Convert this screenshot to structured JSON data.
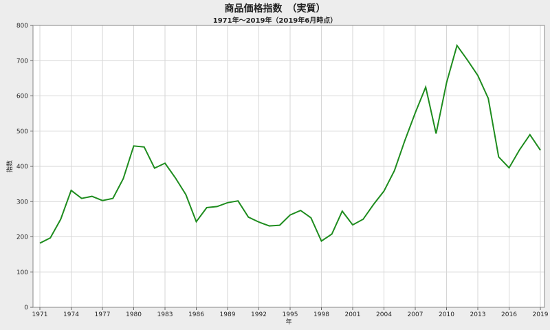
{
  "chart_data": {
    "type": "line",
    "title": "商品価格指数　（実質）",
    "subtitle": "1971年～2019年（2019年6月時点）",
    "xlabel": "年",
    "ylabel": "指数",
    "xlim": [
      1971,
      2019
    ],
    "ylim": [
      0,
      800
    ],
    "x_ticks": [
      "1971",
      "1974",
      "1977",
      "1980",
      "1983",
      "1986",
      "1989",
      "1992",
      "1995",
      "1998",
      "2001",
      "2004",
      "2007",
      "2010",
      "2013",
      "2016",
      "2019"
    ],
    "y_ticks": [
      "0",
      "100",
      "200",
      "300",
      "400",
      "500",
      "600",
      "700",
      "800"
    ],
    "grid": true,
    "series_color": "#1e8c1e",
    "series": [
      {
        "x": [
          1971,
          1972,
          1973,
          1974,
          1975,
          1976,
          1977,
          1978,
          1979,
          1980,
          1981,
          1982,
          1983,
          1984,
          1985,
          1986,
          1987,
          1988,
          1989,
          1990,
          1991,
          1992,
          1993,
          1994,
          1995,
          1996,
          1997,
          1998,
          1999,
          2000,
          2001,
          2002,
          2003,
          2004,
          2005,
          2006,
          2007,
          2008,
          2009,
          2010,
          2011,
          2012,
          2013,
          2014,
          2015,
          2016,
          2017,
          2018,
          2019
        ],
        "values": [
          182,
          197,
          250,
          332,
          309,
          315,
          303,
          309,
          365,
          458,
          455,
          395,
          409,
          367,
          320,
          243,
          283,
          286,
          297,
          302,
          256,
          242,
          231,
          233,
          262,
          275,
          254,
          188,
          208,
          273,
          234,
          250,
          292,
          330,
          388,
          473,
          552,
          625,
          493,
          637,
          743,
          702,
          658,
          593,
          427,
          396,
          447,
          490,
          446
        ]
      }
    ]
  }
}
